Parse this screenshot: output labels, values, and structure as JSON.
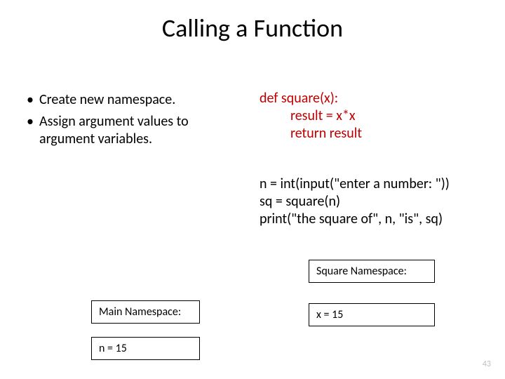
{
  "title": "Calling a Function",
  "bullets": {
    "items": [
      "Create new namespace.",
      "Assign argument values to argument variables."
    ],
    "marker": "•"
  },
  "code_def": {
    "line1": "def square(x):",
    "line2": "result = x*x",
    "line3": "return result",
    "color": "#c00000"
  },
  "code_main": {
    "line1": "n = int(input(\"enter a number: \"))",
    "line2": "sq = square(n)",
    "line3": "print(\"the square of\", n, \"is\", sq)"
  },
  "boxes": {
    "square_title": "Square Namespace:",
    "main_title": "Main Namespace:",
    "square_var": "x = 15",
    "main_var": "n = 15"
  },
  "page_number": "43",
  "style": {
    "background_color": "#ffffff",
    "text_color": "#000000",
    "code_highlight_color": "#c00000",
    "pagenum_color": "#bfbfbf",
    "box_border_color": "#000000",
    "title_fontsize": 36,
    "body_fontsize": 20,
    "box_fontsize": 16,
    "pagenum_fontsize": 12,
    "font_family": "Calibri"
  }
}
